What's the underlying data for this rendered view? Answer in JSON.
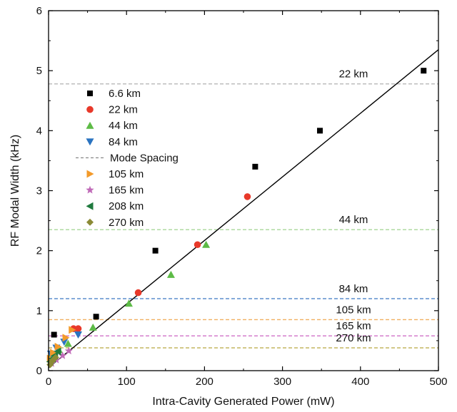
{
  "chart_data": {
    "type": "scatter",
    "xlabel": "Intra-Cavity Generated Power (mW)",
    "ylabel": "RF Modal Width (kHz)",
    "xlim": [
      0,
      500
    ],
    "ylim": [
      0,
      6
    ],
    "xticks": [
      "0",
      "100",
      "200",
      "300",
      "400",
      "500"
    ],
    "yticks": [
      "0",
      "1",
      "2",
      "3",
      "4",
      "5",
      "6"
    ],
    "grid": false,
    "legend_position": "upper-left",
    "series": [
      {
        "name": "6.6 km",
        "marker": "square",
        "color": "#000000",
        "points": [
          [
            7,
            0.6
          ],
          [
            61,
            0.9
          ],
          [
            137,
            2.0
          ],
          [
            265,
            3.4
          ],
          [
            348,
            4.0
          ],
          [
            481,
            5.0
          ]
        ]
      },
      {
        "name": "22  km",
        "marker": "circle",
        "color": "#e8392a",
        "points": [
          [
            32,
            0.7
          ],
          [
            38,
            0.7
          ],
          [
            115,
            1.3
          ],
          [
            191,
            2.1
          ],
          [
            255,
            2.9
          ]
        ]
      },
      {
        "name": "44  km",
        "marker": "triangle-up",
        "color": "#5dbb46",
        "points": [
          [
            3,
            0.25
          ],
          [
            13,
            0.35
          ],
          [
            25,
            0.45
          ],
          [
            57,
            0.72
          ],
          [
            103,
            1.12
          ],
          [
            157,
            1.6
          ],
          [
            202,
            2.1
          ]
        ]
      },
      {
        "name": "84  km",
        "marker": "triangle-down",
        "color": "#2a73c0",
        "points": [
          [
            3,
            0.28
          ],
          [
            10,
            0.38
          ],
          [
            20,
            0.48
          ],
          [
            38,
            0.6
          ]
        ]
      },
      {
        "name": "105 km",
        "marker": "triangle-right",
        "color": "#f39a2a",
        "points": [
          [
            2,
            0.2
          ],
          [
            6,
            0.3
          ],
          [
            12,
            0.4
          ],
          [
            22,
            0.55
          ],
          [
            30,
            0.68
          ]
        ]
      },
      {
        "name": "165 km",
        "marker": "star",
        "color": "#c06bb8",
        "points": [
          [
            4,
            0.12
          ],
          [
            10,
            0.18
          ],
          [
            18,
            0.25
          ],
          [
            26,
            0.33
          ]
        ]
      },
      {
        "name": "208 km",
        "marker": "triangle-left",
        "color": "#1f7a3e",
        "points": [
          [
            2,
            0.15
          ],
          [
            5,
            0.2
          ],
          [
            8,
            0.25
          ],
          [
            12,
            0.32
          ]
        ]
      },
      {
        "name": "270 km",
        "marker": "diamond",
        "color": "#8b8a36",
        "points": [
          [
            2,
            0.1
          ],
          [
            4,
            0.15
          ],
          [
            6,
            0.18
          ],
          [
            9,
            0.22
          ]
        ]
      }
    ],
    "mode_spacing_legend": {
      "name": "Mode Spacing",
      "color": "#888888"
    },
    "mode_spacing_lines": [
      {
        "label": "22 km",
        "y": 4.78,
        "color": "#b8b8b8"
      },
      {
        "label": "44 km",
        "y": 2.35,
        "color": "#a8d89a"
      },
      {
        "label": "84 km",
        "y": 1.2,
        "color": "#3a78c2"
      },
      {
        "label": "105 km",
        "y": 0.85,
        "color": "#f0b060"
      },
      {
        "label": "165 km",
        "y": 0.58,
        "color": "#d070c8"
      },
      {
        "label": "270 km",
        "y": 0.38,
        "color": "#b8a840"
      }
    ],
    "fit_line": {
      "color": "#000000",
      "x": [
        0,
        500
      ],
      "y": [
        0.05,
        5.35
      ]
    }
  }
}
